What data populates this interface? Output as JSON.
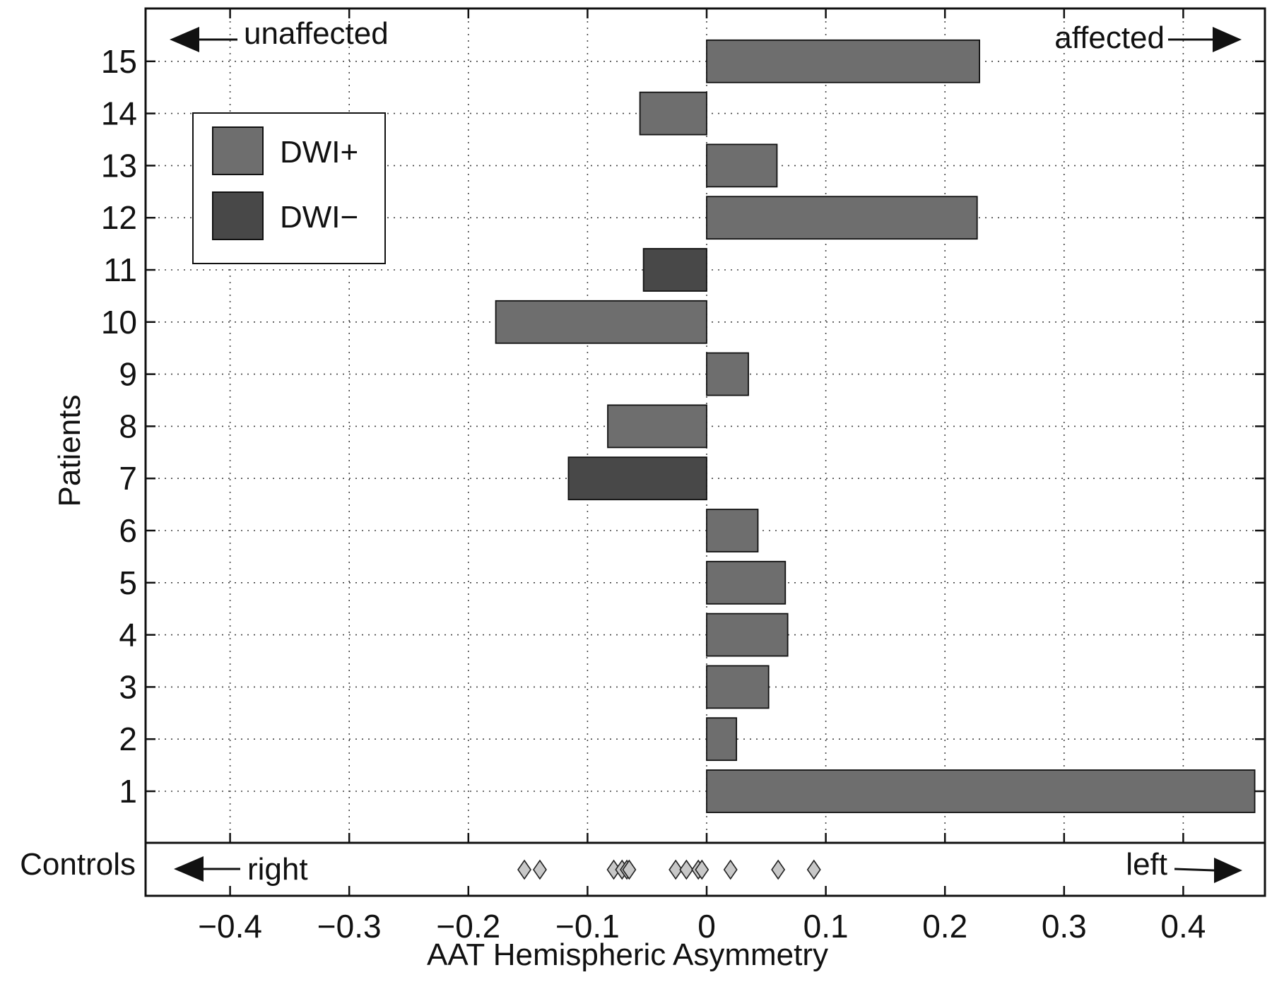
{
  "chart_data": {
    "type": "bar",
    "orientation": "horizontal",
    "xlabel": "AAT Hemispheric Asymmetry",
    "ylabel": "Patients",
    "xlim": [
      -0.47,
      0.47
    ],
    "x_ticks": [
      -0.4,
      -0.3,
      -0.2,
      -0.1,
      0,
      0.1,
      0.2,
      0.3,
      0.4
    ],
    "x_tick_labels": [
      "−0.4",
      "−0.3",
      "−0.2",
      "−0.1",
      "0",
      "0.1",
      "0.2",
      "0.3",
      "0.4"
    ],
    "grid": true,
    "categories": [
      "1",
      "2",
      "3",
      "4",
      "5",
      "6",
      "7",
      "8",
      "9",
      "10",
      "11",
      "12",
      "13",
      "14",
      "15"
    ],
    "values": [
      0.46,
      0.025,
      0.052,
      0.068,
      0.066,
      0.043,
      -0.116,
      -0.083,
      0.035,
      -0.177,
      -0.053,
      0.227,
      0.059,
      -0.056,
      0.229
    ],
    "groups": [
      "DWI+",
      "DWI+",
      "DWI+",
      "DWI+",
      "DWI+",
      "DWI+",
      "DWI−",
      "DWI+",
      "DWI+",
      "DWI+",
      "DWI−",
      "DWI+",
      "DWI+",
      "DWI+",
      "DWI+"
    ],
    "legend": {
      "placement": "top-left",
      "entries": [
        {
          "label": "DWI+",
          "color": "#6e6e6e"
        },
        {
          "label": "DWI−",
          "color": "#484848"
        }
      ]
    },
    "controls": {
      "label": "Controls",
      "values": [
        -0.153,
        -0.14,
        -0.078,
        -0.071,
        -0.067,
        -0.065,
        -0.026,
        -0.017,
        -0.007,
        -0.004,
        0.02,
        0.06,
        0.09
      ],
      "marker": "diamond",
      "color": "#c8c8c8"
    },
    "annotations": {
      "top_left": "unaffected",
      "top_right": "affected",
      "bottom_left": "right",
      "bottom_right": "left"
    }
  }
}
